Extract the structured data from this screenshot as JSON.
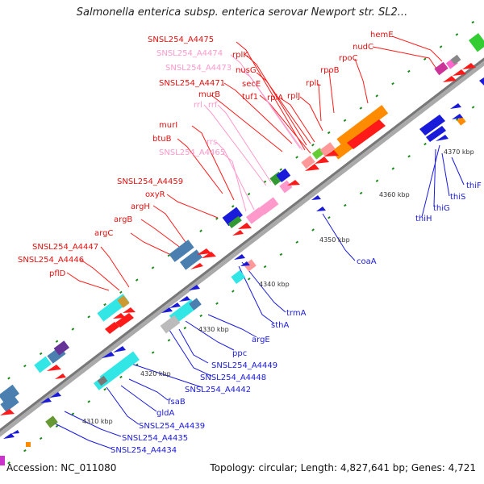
{
  "title": "Salmonella enterica subsp. enterica serovar Newport str. SL2...",
  "accession": "Accession: NC_011080",
  "topology": "Topology: circular; Length: 4,827,641 bp; Genes: 4,721",
  "colors": {
    "forward_gene": "#ff1a1a",
    "reverse_gene": "#1a1adb",
    "rRNA_label": "#ff99cc",
    "pink_feature": "#ff99cc",
    "orange_feature": "#ff8c00",
    "cyan_feature": "#33e6e6",
    "steelblue_feature": "#4a7fb0",
    "tick": "#1a8a1a",
    "ticklabel": "#333333"
  },
  "scale_labels": [
    "4310 kbp",
    "4320 kbp",
    "4330 kbp",
    "4340 kbp",
    "4350 kbp",
    "4360 kbp",
    "4370 kbp"
  ],
  "forward_labels": [
    "hemE",
    "nudC",
    "SNSL254_A4475",
    "SNSL254_A4474",
    "rplK",
    "SNSL254_A4473",
    "nusG",
    "rpoC",
    "rpoB",
    "secE",
    "SNSL254_A4471",
    "tuf1",
    "rplA",
    "rplJ",
    "rplL",
    "murB",
    "rrl",
    "rrf",
    "murI",
    "btuB",
    "rrs",
    "SNSL254_A4465",
    "SNSL254_A4459",
    "oxyR",
    "argH",
    "argB",
    "argC",
    "SNSL254_A4447",
    "SNSL254_A4446",
    "pflD"
  ],
  "reverse_labels": [
    "thiF",
    "thiS",
    "thiG",
    "thiH",
    "coaA",
    "trmA",
    "sthA",
    "argE",
    "ppc",
    "SNSL254_A4449",
    "SNSL254_A4448",
    "SNSL254_A4442",
    "fsaB",
    "gldA",
    "SNSL254_A4439",
    "SNSL254_A4435",
    "SNSL254_A4434"
  ]
}
